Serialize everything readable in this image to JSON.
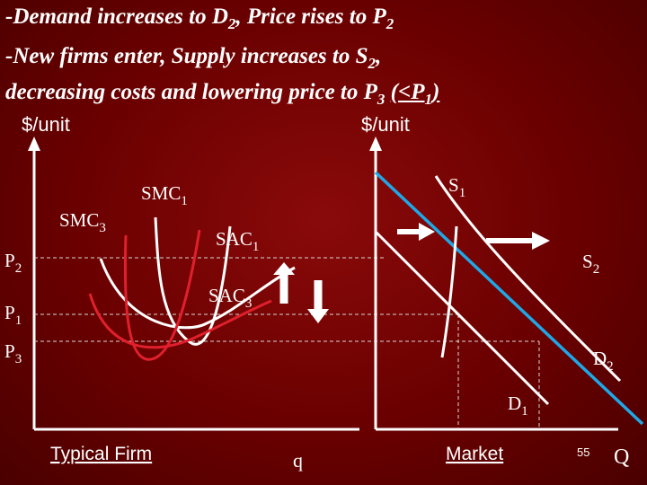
{
  "title": {
    "line1": {
      "a": "-Demand increases to D",
      "a_sub": "2",
      "b": ", Price rises to P",
      "b_sub": "2"
    },
    "line2": {
      "a": "-New firms enter, Supply increases to S",
      "a_sub": "2",
      "b": ","
    },
    "line3": {
      "a": "decreasing costs and lowering price to P",
      "a_sub": "3",
      "b_pre": " ",
      "b_u": "(<P",
      "b_sub": "1",
      "b_close": ")"
    }
  },
  "left_panel": {
    "y_axis_label": "$/unit",
    "x_axis_label": "q",
    "panel_label": "Typical Firm",
    "price_labels": [
      {
        "main": "P",
        "sub": "2"
      },
      {
        "main": "P",
        "sub": "1"
      },
      {
        "main": "P",
        "sub": "3"
      }
    ],
    "curve_labels": {
      "smc1": {
        "main": "SMC",
        "sub": "1"
      },
      "smc3": {
        "main": "SMC",
        "sub": "3"
      },
      "sac1": {
        "main": "SAC",
        "sub": "1"
      },
      "sac3": {
        "main": "SAC",
        "sub": "3"
      }
    }
  },
  "right_panel": {
    "y_axis_label": "$/unit",
    "x_axis_label": "Q",
    "panel_label": "Market",
    "curve_labels": {
      "s1": {
        "main": "S",
        "sub": "1"
      },
      "s2": {
        "main": "S",
        "sub": "2"
      },
      "d1": {
        "main": "D",
        "sub": "1"
      },
      "d2": {
        "main": "D",
        "sub": "2"
      }
    }
  },
  "slide_number": "55",
  "colors": {
    "background": "#6a0000",
    "curves": "#ffffff",
    "shifted_cost_curves": "#e0202c",
    "supply_s1": "#1ea8e8",
    "axes": "#ffffff",
    "guide_lines": "#d8d8d8"
  }
}
